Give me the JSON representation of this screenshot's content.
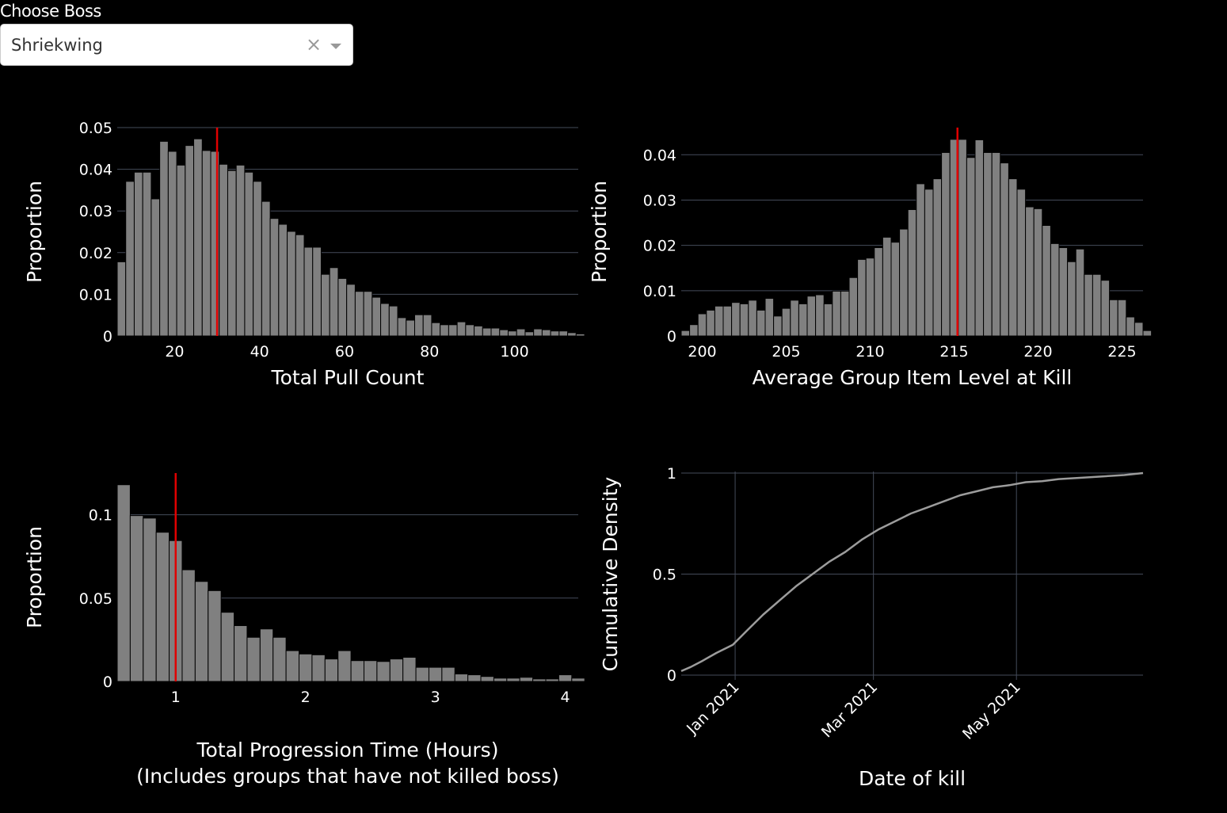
{
  "dropdown": {
    "label": "Choose Boss",
    "selected": "Shriekwing",
    "clear_glyph": "×"
  },
  "colors": {
    "bar": "#808080",
    "bar_edge": "#000000",
    "marker": "#e00000",
    "grid": "#444b5a",
    "line": "#9c9c9c"
  },
  "chart_data": [
    {
      "type": "bar",
      "title": "",
      "xlabel": "Total Pull Count",
      "ylabel": "Proportion",
      "xlim": [
        6.5,
        115
      ],
      "ylim": [
        0,
        0.05
      ],
      "xticks": [
        20,
        40,
        60,
        80,
        100
      ],
      "yticks": [
        0,
        0.01,
        0.02,
        0.03,
        0.04,
        0.05
      ],
      "ytick_labels": [
        "0",
        "0.01",
        "0.02",
        "0.03",
        "0.04",
        "0.05"
      ],
      "bin_start": 6.5,
      "bin_width": 2,
      "values": [
        0.0178,
        0.0371,
        0.0393,
        0.0393,
        0.0329,
        0.0467,
        0.0443,
        0.041,
        0.0457,
        0.0473,
        0.0445,
        0.0443,
        0.0412,
        0.0397,
        0.041,
        0.0393,
        0.0371,
        0.0323,
        0.0282,
        0.0268,
        0.0251,
        0.0243,
        0.0213,
        0.0213,
        0.0148,
        0.0164,
        0.0138,
        0.0124,
        0.0107,
        0.0107,
        0.0093,
        0.0078,
        0.0072,
        0.0044,
        0.0038,
        0.0051,
        0.0051,
        0.0032,
        0.0027,
        0.0027,
        0.0034,
        0.0027,
        0.0024,
        0.0019,
        0.0019,
        0.0015,
        0.0012,
        0.0017,
        0.001,
        0.0017,
        0.0015,
        0.0012,
        0.0012,
        0.0008,
        0.0005
      ],
      "marker_x": 30
    },
    {
      "type": "bar",
      "title": "",
      "xlabel": "Average Group Item Level at Kill",
      "ylabel": "Proportion",
      "xlim": [
        198.75,
        226.25
      ],
      "ylim": [
        0,
        0.046
      ],
      "xticks": [
        200,
        205,
        210,
        215,
        220,
        225
      ],
      "yticks": [
        0,
        0.01,
        0.02,
        0.03,
        0.04
      ],
      "ytick_labels": [
        "0",
        "0.01",
        "0.02",
        "0.03",
        "0.04"
      ],
      "bin_start": 198.75,
      "bin_width": 0.5,
      "values": [
        0.0012,
        0.0025,
        0.0049,
        0.0057,
        0.0066,
        0.0066,
        0.0074,
        0.0071,
        0.0079,
        0.0057,
        0.0083,
        0.0044,
        0.0061,
        0.0079,
        0.0071,
        0.0088,
        0.0091,
        0.0071,
        0.0099,
        0.0099,
        0.0129,
        0.0169,
        0.0172,
        0.0195,
        0.0218,
        0.0207,
        0.0236,
        0.0279,
        0.0336,
        0.0324,
        0.0347,
        0.0405,
        0.0434,
        0.0434,
        0.0394,
        0.0433,
        0.0405,
        0.0405,
        0.0382,
        0.0347,
        0.0324,
        0.0285,
        0.0281,
        0.0244,
        0.0204,
        0.0195,
        0.0164,
        0.0192,
        0.0136,
        0.0136,
        0.0123,
        0.008,
        0.008,
        0.0042,
        0.003,
        0.0012
      ],
      "marker_x": 215.2
    },
    {
      "type": "bar",
      "title": "",
      "xlabel": "Total Progression Time (Hours)",
      "xlabel_line2": "(Includes groups that have not killed boss)",
      "ylabel": "Proportion",
      "xlim": [
        0.55,
        4.1
      ],
      "ylim": [
        0,
        0.125
      ],
      "xticks": [
        1,
        2,
        3,
        4
      ],
      "yticks": [
        0,
        0.05,
        0.1
      ],
      "ytick_labels": [
        "0",
        "0.05",
        "0.1"
      ],
      "bin_start": 0.55,
      "bin_width": 0.1,
      "values": [
        0.118,
        0.0995,
        0.098,
        0.0895,
        0.0845,
        0.067,
        0.06,
        0.0545,
        0.0415,
        0.0335,
        0.0265,
        0.0315,
        0.0265,
        0.0185,
        0.0165,
        0.016,
        0.0135,
        0.0185,
        0.0125,
        0.0125,
        0.012,
        0.0135,
        0.0145,
        0.0085,
        0.0085,
        0.0085,
        0.0045,
        0.004,
        0.003,
        0.002,
        0.002,
        0.0025,
        0.0015,
        0.0015,
        0.004,
        0.002
      ],
      "marker_x": 1.0
    },
    {
      "type": "line",
      "title": "",
      "xlabel": "Date of kill",
      "ylabel": "Cumulative Density",
      "xlim": [
        "2020-12-09",
        "2021-06-24"
      ],
      "ylim": [
        0,
        1
      ],
      "xticks": [
        "2021-01-01",
        "2021-03-01",
        "2021-05-01"
      ],
      "xtick_labels": [
        "Jan 2021",
        "Mar 2021",
        "May 2021"
      ],
      "yticks": [
        0,
        0.5,
        1
      ],
      "ytick_labels": [
        "0",
        "0.5",
        "1"
      ],
      "x": [
        "2020-12-09",
        "2020-12-13",
        "2020-12-18",
        "2020-12-24",
        "2020-12-31",
        "2021-01-06",
        "2021-01-13",
        "2021-01-20",
        "2021-01-27",
        "2021-02-03",
        "2021-02-10",
        "2021-02-17",
        "2021-02-24",
        "2021-03-03",
        "2021-03-10",
        "2021-03-17",
        "2021-03-24",
        "2021-03-31",
        "2021-04-07",
        "2021-04-14",
        "2021-04-21",
        "2021-04-28",
        "2021-05-05",
        "2021-05-12",
        "2021-05-19",
        "2021-06-02",
        "2021-06-16",
        "2021-06-24"
      ],
      "y": [
        0.02,
        0.04,
        0.07,
        0.11,
        0.15,
        0.22,
        0.3,
        0.37,
        0.44,
        0.5,
        0.56,
        0.61,
        0.67,
        0.72,
        0.76,
        0.8,
        0.83,
        0.86,
        0.89,
        0.91,
        0.93,
        0.94,
        0.955,
        0.96,
        0.97,
        0.98,
        0.99,
        1.0
      ]
    }
  ]
}
